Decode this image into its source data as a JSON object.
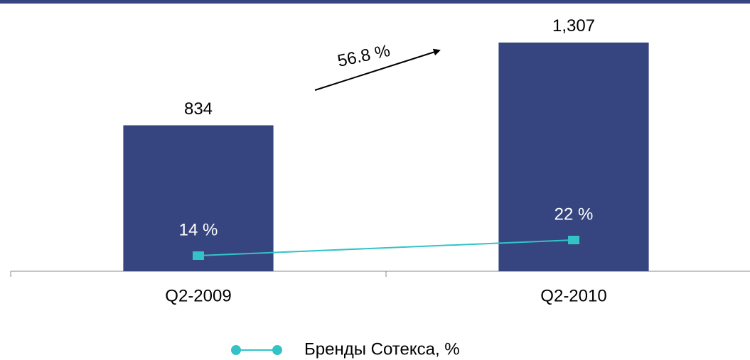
{
  "chart_data": {
    "type": "bar",
    "categories": [
      "Q2-2009",
      "Q2-2010"
    ],
    "values": [
      834,
      1307
    ],
    "value_labels": [
      "834",
      "1,307"
    ],
    "color": "#36457f",
    "ylim": [
      0,
      1550
    ],
    "series": [
      {
        "name": "Бренды Сотекса, %",
        "color": "#33c3c6",
        "type": "line",
        "axis": "y2",
        "values": [
          14,
          22
        ],
        "value_labels": [
          "14 %",
          "22 %"
        ]
      }
    ],
    "y2lim": [
      6,
      145
    ],
    "annotations": [
      "56.8 %"
    ],
    "legend": "bottom"
  }
}
